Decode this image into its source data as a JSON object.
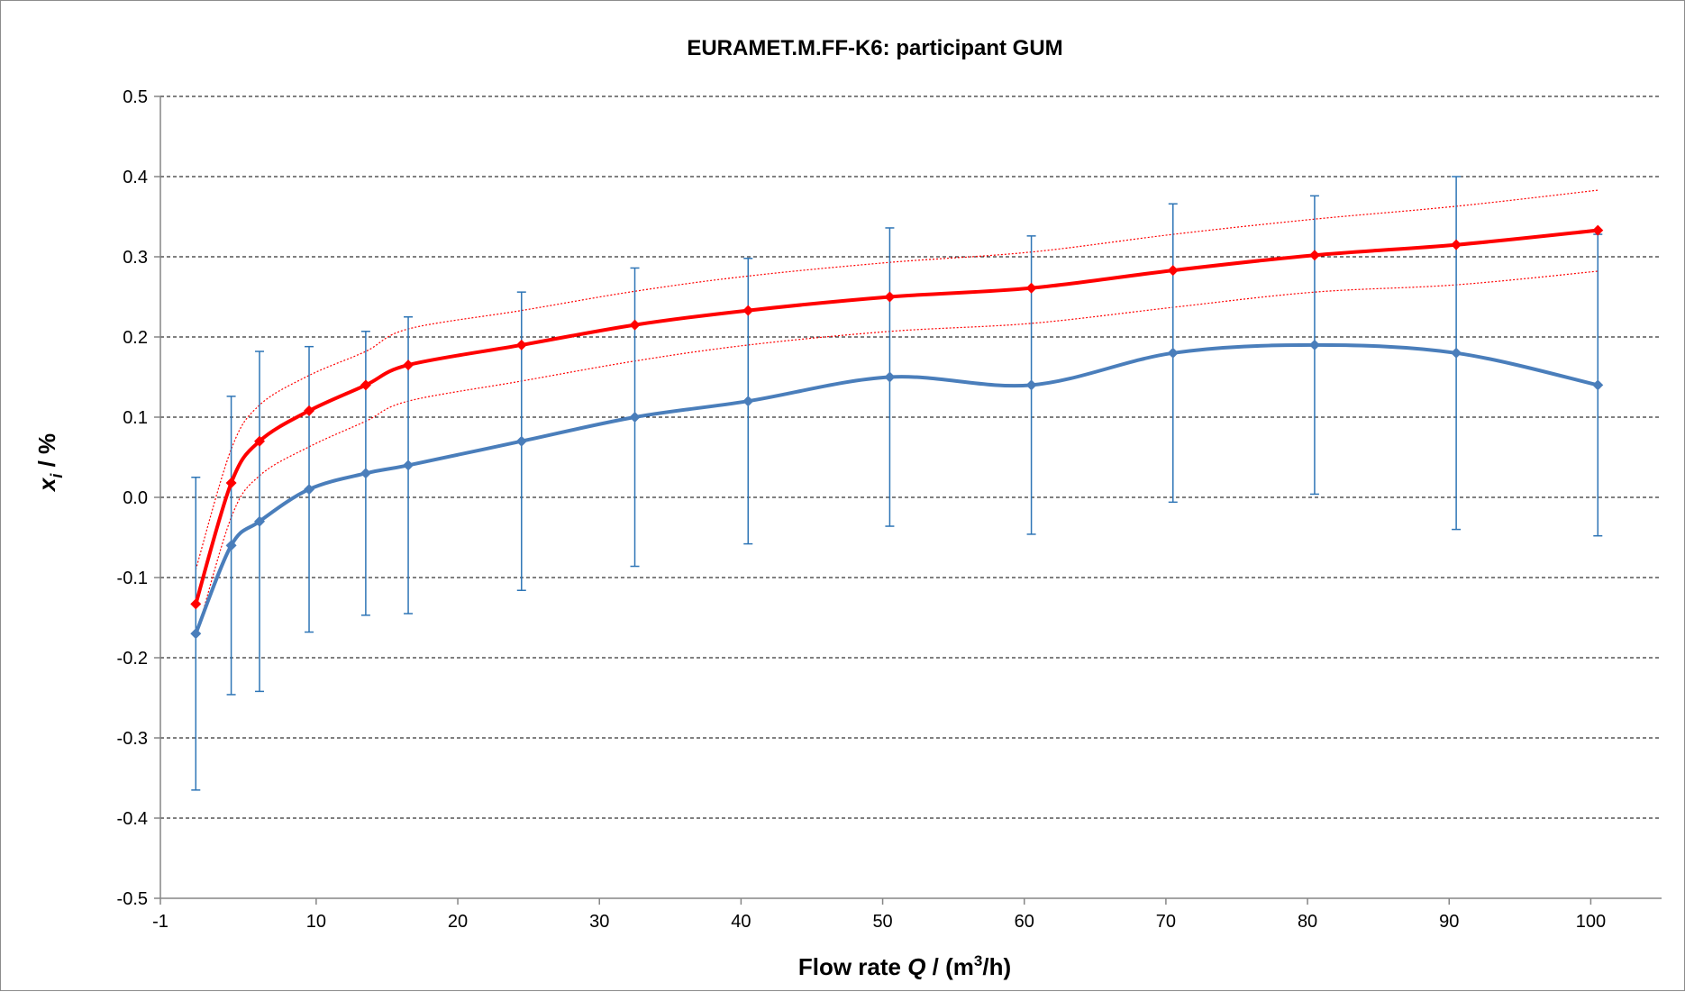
{
  "chart_data": {
    "type": "line",
    "title": "EURAMET.M.FF-K6: participant GUM",
    "xlabel": {
      "prefix": "Flow rate ",
      "var": "Q",
      "mid": " / (m",
      "sup": "3",
      "suffix": "/h)"
    },
    "ylabel": {
      "var": "x",
      "sub": "i",
      "suffix": " / %"
    },
    "xlim": [
      -1,
      105
    ],
    "ylim": [
      -0.5,
      0.5
    ],
    "xticks": [
      -1,
      10,
      20,
      30,
      40,
      50,
      60,
      70,
      80,
      90,
      100
    ],
    "yticks": [
      -0.5,
      -0.4,
      -0.3,
      -0.2,
      -0.1,
      0.0,
      0.1,
      0.2,
      0.3,
      0.4,
      0.5
    ],
    "ytick_labels": [
      "-0.5",
      "-0.4",
      "-0.3",
      "-0.2",
      "-0.1",
      "0.0",
      "0.1",
      "0.2",
      "0.3",
      "0.4",
      "0.5"
    ],
    "grid": "horizontal dashed",
    "series": [
      {
        "color": "#4a7ebb",
        "marker": "diamond",
        "line_width": 4,
        "smooth": true,
        "x": [
          1.5,
          4.0,
          6.0,
          9.5,
          13.5,
          16.5,
          24.5,
          32.5,
          40.5,
          50.5,
          60.5,
          70.5,
          80.5,
          90.5,
          100.5
        ],
        "y": [
          -0.17,
          -0.06,
          -0.03,
          0.01,
          0.03,
          0.04,
          0.07,
          0.1,
          0.12,
          0.15,
          0.14,
          0.18,
          0.19,
          0.18,
          0.14
        ],
        "error_bars": {
          "color": "#2e75b6",
          "plus_minus": [
            0.195,
            0.186,
            0.212,
            0.178,
            0.177,
            0.185,
            0.186,
            0.186,
            0.178,
            0.186,
            0.186,
            0.186,
            0.186,
            0.22,
            0.188
          ]
        }
      },
      {
        "color": "#ff0000",
        "marker": "diamond",
        "line_width": 4,
        "smooth": true,
        "x": [
          1.5,
          4.0,
          6.0,
          9.5,
          13.5,
          16.5,
          24.5,
          32.5,
          40.5,
          50.5,
          60.5,
          70.5,
          80.5,
          90.5,
          100.5
        ],
        "y": [
          -0.133,
          0.018,
          0.07,
          0.108,
          0.14,
          0.165,
          0.19,
          0.215,
          0.233,
          0.25,
          0.261,
          0.283,
          0.302,
          0.315,
          0.333
        ]
      }
    ],
    "band": {
      "color": "#ff0000",
      "style": "dotted",
      "x": [
        1.5,
        4.0,
        6.0,
        9.5,
        13.5,
        16.5,
        24.5,
        32.5,
        40.5,
        50.5,
        60.5,
        70.5,
        80.5,
        90.5,
        100.5
      ],
      "upper": [
        -0.09,
        0.06,
        0.115,
        0.152,
        0.182,
        0.21,
        0.233,
        0.257,
        0.276,
        0.293,
        0.306,
        0.328,
        0.347,
        0.363,
        0.383
      ],
      "lower": [
        -0.175,
        -0.025,
        0.027,
        0.063,
        0.095,
        0.12,
        0.145,
        0.17,
        0.19,
        0.207,
        0.217,
        0.237,
        0.256,
        0.265,
        0.282
      ]
    }
  }
}
